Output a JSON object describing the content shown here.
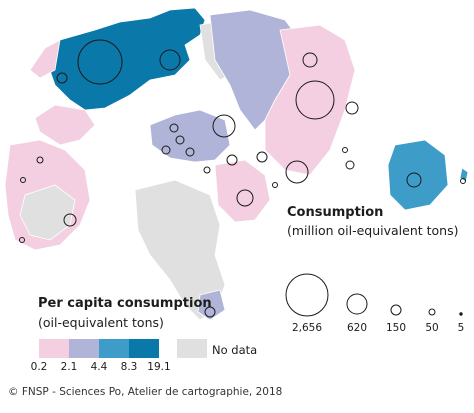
{
  "titles": {
    "consumption_title": "Consumption",
    "consumption_subtitle": "(million oil-equivalent tons)",
    "per_capita_title": "Per capita consumption",
    "per_capita_subtitle": "(oil-equivalent tons)",
    "no_data": "No data",
    "credit": "© FNSP - Sciences Po, Atelier de cartographie, 2018"
  },
  "classes": {
    "breaks": [
      "0.2",
      "2.1",
      "4.4",
      "8.3",
      "19.1"
    ],
    "colors": [
      "#f3cfe1",
      "#afb4d8",
      "#3d9cc8",
      "#0a78a8"
    ],
    "no_data_color": "#e0e0e0"
  },
  "proportional_legend": {
    "labels": [
      "2,656",
      "620",
      "150",
      "50",
      "5"
    ]
  }
}
